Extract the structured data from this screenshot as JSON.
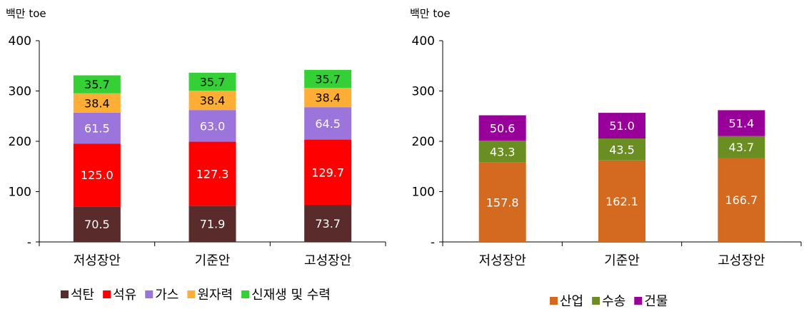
{
  "chart_data": [
    {
      "type": "bar",
      "stacked": true,
      "unit_label": "백만 toe",
      "ylim": [
        0,
        400
      ],
      "yticks": [
        0,
        100,
        200,
        300,
        400
      ],
      "ytick_labels": [
        "-",
        "100",
        "200",
        "300",
        "400"
      ],
      "categories": [
        "저성장안",
        "기준안",
        "고성장안"
      ],
      "legend_position": "bottom",
      "series": [
        {
          "name": "석탄",
          "color": "#5a2b2b",
          "label_color": "#ffffff",
          "values": [
            70.5,
            71.9,
            73.7
          ]
        },
        {
          "name": "석유",
          "color": "#ff0000",
          "label_color": "#ffffff",
          "values": [
            125.0,
            127.3,
            129.7
          ]
        },
        {
          "name": "가스",
          "color": "#9b74dc",
          "label_color": "#ffffff",
          "values": [
            61.5,
            63.0,
            64.5
          ]
        },
        {
          "name": "원자력",
          "color": "#ffae35",
          "label_color": "#000000",
          "values": [
            38.4,
            38.4,
            38.4
          ]
        },
        {
          "name": "신재생 및 수력",
          "color": "#35d035",
          "label_color": "#000000",
          "values": [
            35.7,
            35.7,
            35.7
          ]
        }
      ]
    },
    {
      "type": "bar",
      "stacked": true,
      "unit_label": "백만 toe",
      "ylim": [
        0,
        400
      ],
      "yticks": [
        0,
        100,
        200,
        300,
        400
      ],
      "ytick_labels": [
        "-",
        "100",
        "200",
        "300",
        "400"
      ],
      "categories": [
        "저성장안",
        "기준안",
        "고성장안"
      ],
      "legend_position": "bottom",
      "series": [
        {
          "name": "산업",
          "color": "#d46a20",
          "label_color": "#ffffff",
          "values": [
            157.8,
            162.1,
            166.7
          ]
        },
        {
          "name": "수송",
          "color": "#6b8e23",
          "label_color": "#ffffff",
          "values": [
            43.3,
            43.5,
            43.7
          ]
        },
        {
          "name": "건물",
          "color": "#990099",
          "label_color": "#ffffff",
          "values": [
            50.6,
            51.0,
            51.4
          ]
        }
      ]
    }
  ]
}
